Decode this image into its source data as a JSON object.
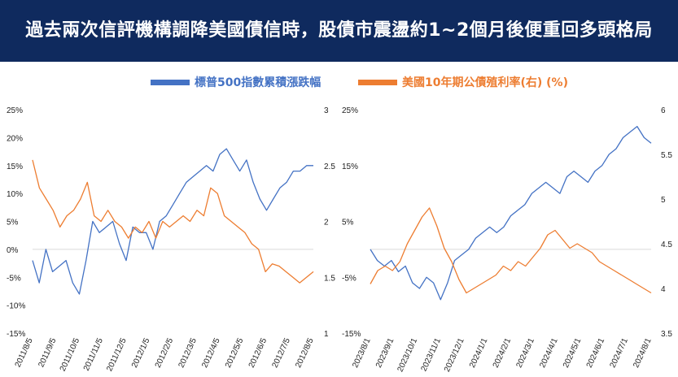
{
  "header": {
    "title": "過去兩次信評機構調降美國債信時，股債市震盪約1~2個月後便重回多頭格局"
  },
  "colors": {
    "header_bg": "#0f2a5e",
    "stock": "#4472c4",
    "yield": "#ed7d31"
  },
  "legend": [
    {
      "name": "標普500指數累積漲跌幅",
      "color": "#4472c4"
    },
    {
      "name": "美國10年期公債殖利率(右) (%)",
      "color": "#ed7d31"
    }
  ],
  "chart_data": [
    {
      "type": "line",
      "x_labels": [
        "2011/8/5",
        "2011/9/5",
        "2011/10/5",
        "2011/11/5",
        "2011/12/5",
        "2012/1/5",
        "2012/2/5",
        "2012/3/5",
        "2012/4/5",
        "2012/5/5",
        "2012/6/5",
        "2012/7/5",
        "2012/8/5"
      ],
      "y_left_ticks": [
        "25%",
        "20%",
        "15%",
        "10%",
        "5%",
        "0%",
        "-5%",
        "-10%",
        "-15%"
      ],
      "y_right_ticks": [
        "3",
        "2.5",
        "2",
        "1.5",
        "1"
      ],
      "y_left_range": [
        -15,
        25
      ],
      "y_right_range": [
        1,
        3
      ],
      "series": [
        {
          "name": "標普500指數累積漲跌幅",
          "axis": "left",
          "color": "#4472c4",
          "values": [
            -2,
            -6,
            0,
            -4,
            -3,
            -2,
            -6,
            -8,
            -2,
            5,
            3,
            4,
            5,
            1,
            -2,
            4,
            3,
            3,
            0,
            5,
            6,
            8,
            10,
            12,
            13,
            14,
            15,
            14,
            17,
            18,
            16,
            14,
            16,
            12,
            9,
            7,
            9,
            11,
            12,
            14,
            14,
            15,
            15
          ]
        },
        {
          "name": "美國10年期公債殖利率(右) (%)",
          "axis": "right",
          "color": "#ed7d31",
          "values": [
            2.55,
            2.3,
            2.2,
            2.1,
            1.95,
            2.05,
            2.1,
            2.2,
            2.35,
            2.05,
            2.0,
            2.1,
            2.0,
            1.95,
            1.85,
            1.95,
            1.9,
            2.0,
            1.85,
            2.0,
            1.95,
            2.0,
            2.05,
            2.0,
            2.1,
            2.05,
            2.3,
            2.25,
            2.05,
            2.0,
            1.95,
            1.9,
            1.8,
            1.75,
            1.55,
            1.62,
            1.6,
            1.55,
            1.5,
            1.45,
            1.5,
            1.55
          ]
        }
      ]
    },
    {
      "type": "line",
      "x_labels": [
        "2023/8/1",
        "2023/9/1",
        "2023/10/1",
        "2023/11/1",
        "2023/12/1",
        "2024/1/1",
        "2024/2/1",
        "2024/3/1",
        "2024/4/1",
        "2024/5/1",
        "2024/6/1",
        "2024/7/1",
        "2024/8/1"
      ],
      "y_left_ticks": [
        "25%",
        "15%",
        "5%",
        "-5%",
        "-15%"
      ],
      "y_right_ticks": [
        "6",
        "5.5",
        "5",
        "4.5",
        "4",
        "3.5"
      ],
      "y_left_range": [
        -15,
        25
      ],
      "y_right_range": [
        3.5,
        6
      ],
      "series": [
        {
          "name": "標普500指數累積漲跌幅",
          "axis": "left",
          "color": "#4472c4",
          "values": [
            0,
            -2,
            -3,
            -2,
            -4,
            -3,
            -6,
            -7,
            -5,
            -6,
            -9,
            -6,
            -2,
            -1,
            0,
            2,
            3,
            4,
            3,
            4,
            6,
            7,
            8,
            10,
            11,
            12,
            11,
            10,
            13,
            14,
            13,
            12,
            14,
            15,
            17,
            18,
            20,
            21,
            22,
            20,
            19
          ]
        },
        {
          "name": "美國10年期公債殖利率(右) (%)",
          "axis": "right",
          "color": "#ed7d31",
          "values": [
            4.05,
            4.2,
            4.25,
            4.2,
            4.3,
            4.5,
            4.65,
            4.8,
            4.9,
            4.7,
            4.45,
            4.3,
            4.1,
            3.95,
            4.0,
            4.05,
            4.1,
            4.15,
            4.25,
            4.2,
            4.3,
            4.25,
            4.35,
            4.45,
            4.6,
            4.65,
            4.55,
            4.45,
            4.5,
            4.45,
            4.4,
            4.3,
            4.25,
            4.2,
            4.15,
            4.1,
            4.05,
            4.0,
            3.95
          ]
        }
      ]
    }
  ]
}
